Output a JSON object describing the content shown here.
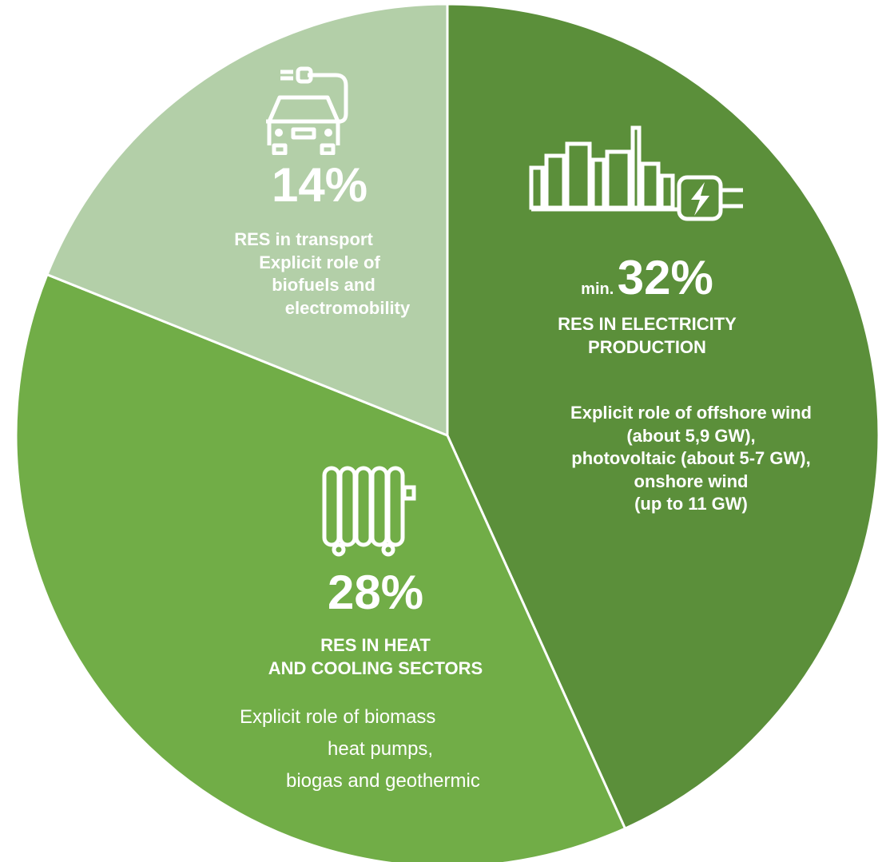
{
  "chart_data": {
    "type": "pie",
    "title": "",
    "slices": [
      {
        "value": 32,
        "prefix": "min.",
        "percent_label": "32%",
        "heading_lines": [
          "RES IN ELECTRICITY",
          "PRODUCTION"
        ],
        "detail_lines": [
          "Explicit role of offshore wind",
          "(about 5,9 GW),",
          "photovoltaic (about 5-7 GW),",
          "onshore wind",
          "(up to 11 GW)"
        ],
        "color": "#5b8f3a",
        "icon": "city-power-plug-icon"
      },
      {
        "value": 28,
        "percent_label": "28%",
        "heading_lines": [
          "RES IN HEAT",
          "AND COOLING SECTORS"
        ],
        "detail_lines": [
          "Explicit role of biomass",
          "heat pumps,",
          "biogas and geothermic"
        ],
        "color": "#71ad47",
        "icon": "radiator-icon"
      },
      {
        "value": 14,
        "percent_label": "14%",
        "heading_lines": [
          "RES in transport",
          "Explicit role of",
          "biofuels and",
          "electromobility"
        ],
        "color": "#b3cfa8",
        "icon": "electric-car-icon"
      }
    ],
    "legend": "none"
  }
}
